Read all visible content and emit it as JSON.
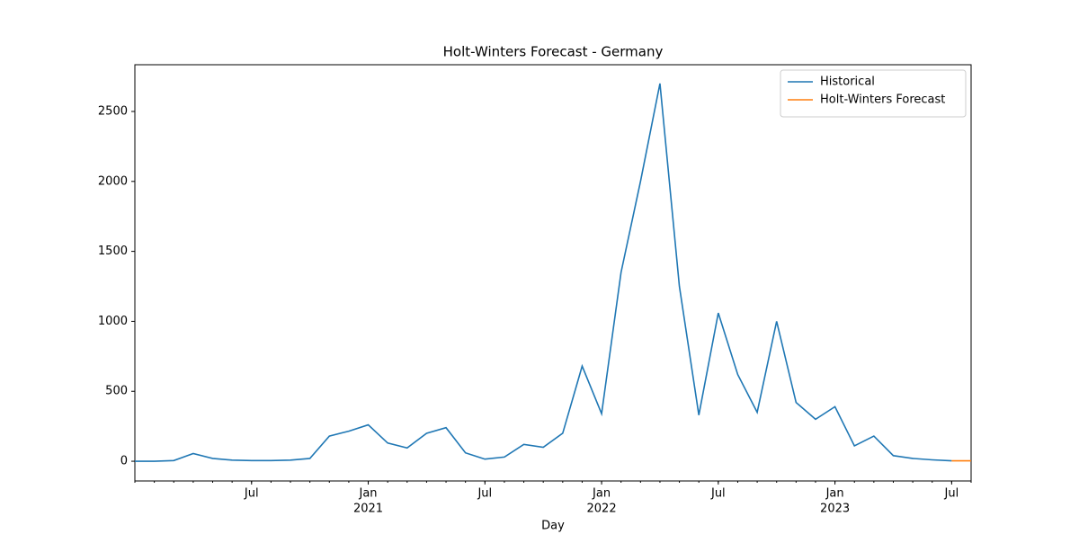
{
  "chart_data": {
    "type": "line",
    "title": "Holt-Winters Forecast - Germany",
    "x_label": "Day",
    "x": [
      "2020-01",
      "2020-02",
      "2020-03",
      "2020-04",
      "2020-05",
      "2020-06",
      "2020-07",
      "2020-08",
      "2020-09",
      "2020-10",
      "2020-11",
      "2020-12",
      "2021-01",
      "2021-02",
      "2021-03",
      "2021-04",
      "2021-05",
      "2021-06",
      "2021-07",
      "2021-08",
      "2021-09",
      "2021-10",
      "2021-11",
      "2021-12",
      "2022-01",
      "2022-02",
      "2022-03",
      "2022-04",
      "2022-05",
      "2022-06",
      "2022-07",
      "2022-08",
      "2022-09",
      "2022-10",
      "2022-11",
      "2022-12",
      "2023-01",
      "2023-02",
      "2023-03",
      "2023-04",
      "2023-05",
      "2023-06",
      "2023-07",
      "2023-08"
    ],
    "series": [
      {
        "name": "Historical",
        "color": "#1f77b4",
        "values": [
          0,
          0,
          5,
          55,
          20,
          8,
          5,
          5,
          8,
          20,
          180,
          215,
          260,
          130,
          95,
          200,
          240,
          60,
          15,
          30,
          120,
          100,
          200,
          680,
          340,
          1350,
          2000,
          2700,
          1250,
          330,
          1060,
          620,
          350,
          1000,
          420,
          300,
          390,
          110,
          180,
          40,
          20,
          10,
          3,
          null
        ]
      },
      {
        "name": "Holt-Winters Forecast",
        "color": "#ff7f0e",
        "values": [
          null,
          null,
          null,
          null,
          null,
          null,
          null,
          null,
          null,
          null,
          null,
          null,
          null,
          null,
          null,
          null,
          null,
          null,
          null,
          null,
          null,
          null,
          null,
          null,
          null,
          null,
          null,
          null,
          null,
          null,
          null,
          null,
          null,
          null,
          null,
          null,
          null,
          null,
          null,
          null,
          null,
          null,
          3,
          3
        ]
      }
    ],
    "xlim": [
      "2020-01",
      "2023-08"
    ],
    "xticks": [
      {
        "value": "2020-07",
        "label": "Jul"
      },
      {
        "value": "2021-01",
        "label": "Jan",
        "year": "2021"
      },
      {
        "value": "2021-07",
        "label": "Jul"
      },
      {
        "value": "2022-01",
        "label": "Jan",
        "year": "2022"
      },
      {
        "value": "2022-07",
        "label": "Jul"
      },
      {
        "value": "2023-01",
        "label": "Jan",
        "year": "2023"
      },
      {
        "value": "2023-07",
        "label": "Jul"
      }
    ],
    "ylim": [
      -141,
      2834
    ],
    "yticks": [
      0,
      500,
      1000,
      1500,
      2000,
      2500
    ],
    "grid": false,
    "legend": "upper right"
  }
}
